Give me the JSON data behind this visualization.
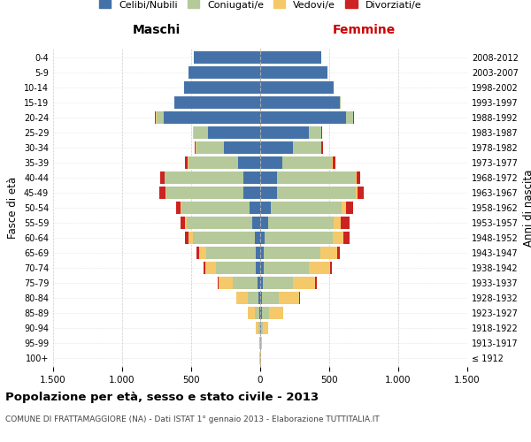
{
  "age_groups": [
    "100+",
    "95-99",
    "90-94",
    "85-89",
    "80-84",
    "75-79",
    "70-74",
    "65-69",
    "60-64",
    "55-59",
    "50-54",
    "45-49",
    "40-44",
    "35-39",
    "30-34",
    "25-29",
    "20-24",
    "15-19",
    "10-14",
    "5-9",
    "0-4"
  ],
  "birth_years": [
    "≤ 1912",
    "1913-1917",
    "1918-1922",
    "1923-1927",
    "1928-1932",
    "1933-1937",
    "1938-1942",
    "1943-1947",
    "1948-1952",
    "1953-1957",
    "1958-1962",
    "1963-1967",
    "1968-1972",
    "1973-1977",
    "1978-1982",
    "1983-1987",
    "1988-1992",
    "1993-1997",
    "1998-2002",
    "2003-2007",
    "2008-2012"
  ],
  "colors": {
    "celibe": "#4472a8",
    "coniugato": "#b5c99a",
    "vedovo": "#f5c96a",
    "divorziato": "#cc2222"
  },
  "legend_colors": {
    "Celibi/Nubili": "#4472a8",
    "Coniugati/e": "#b5c99a",
    "Vedovi/e": "#f5c96a",
    "Divorziati/e": "#cc2222"
  },
  "maschi": {
    "celibe": [
      2,
      2,
      3,
      5,
      10,
      20,
      30,
      30,
      40,
      60,
      80,
      120,
      120,
      160,
      260,
      380,
      700,
      620,
      550,
      520,
      480
    ],
    "coniugato": [
      0,
      2,
      10,
      35,
      80,
      180,
      290,
      360,
      450,
      470,
      490,
      560,
      570,
      360,
      200,
      100,
      50,
      5,
      0,
      0,
      0
    ],
    "vedovo": [
      2,
      5,
      20,
      50,
      80,
      100,
      80,
      50,
      30,
      15,
      10,
      5,
      5,
      5,
      5,
      5,
      5,
      0,
      0,
      0,
      0
    ],
    "divorziato": [
      0,
      0,
      0,
      0,
      5,
      10,
      10,
      20,
      25,
      30,
      30,
      45,
      30,
      20,
      10,
      5,
      5,
      0,
      0,
      0,
      0
    ]
  },
  "femmine": {
    "nubile": [
      2,
      2,
      5,
      10,
      15,
      20,
      25,
      25,
      35,
      55,
      80,
      120,
      120,
      160,
      240,
      350,
      620,
      580,
      530,
      490,
      440
    ],
    "coniugata": [
      0,
      3,
      15,
      55,
      120,
      220,
      330,
      410,
      490,
      480,
      510,
      570,
      570,
      360,
      200,
      90,
      50,
      5,
      0,
      0,
      0
    ],
    "vedova": [
      3,
      10,
      40,
      100,
      150,
      160,
      150,
      120,
      80,
      50,
      30,
      15,
      10,
      8,
      5,
      5,
      5,
      0,
      0,
      0,
      0
    ],
    "divorziata": [
      0,
      0,
      0,
      0,
      5,
      10,
      15,
      20,
      40,
      60,
      55,
      45,
      25,
      15,
      10,
      5,
      5,
      0,
      0,
      0,
      0
    ]
  },
  "xlim": 1500,
  "xticks": [
    -1500,
    -1000,
    -500,
    0,
    500,
    1000,
    1500
  ],
  "xticklabels": [
    "1.500",
    "1.000",
    "500",
    "0",
    "500",
    "1.000",
    "1.500"
  ],
  "title": "Popolazione per età, sesso e stato civile - 2013",
  "subtitle": "COMUNE DI FRATTAMAGGIORE (NA) - Dati ISTAT 1° gennaio 2013 - Elaborazione TUTTITALIA.IT",
  "ylabel_left": "Fasce di età",
  "ylabel_right": "Anni di nascita",
  "maschi_label": "Maschi",
  "femmine_label": "Femmine",
  "bg_color": "#ffffff",
  "grid_color": "#cccccc"
}
